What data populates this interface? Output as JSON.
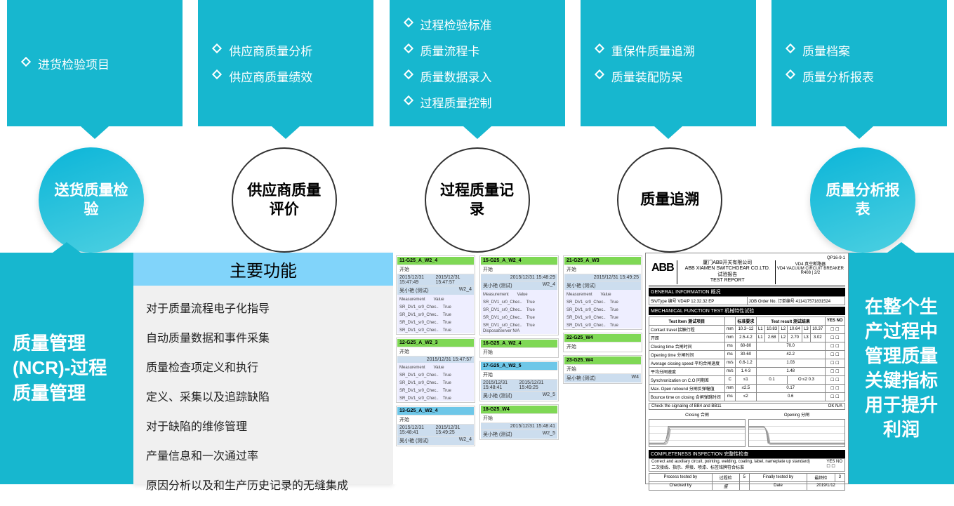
{
  "colors": {
    "teal": "#17b7cf",
    "gradStart": "#0bb5d8",
    "gradEnd": "#4dd0e1",
    "headerBlue": "#81d4fa",
    "green": "#7fd855",
    "lightBlue": "#6ec7e8"
  },
  "top_boxes": [
    {
      "items": [
        "进货检验项目"
      ]
    },
    {
      "items": [
        "供应商质量分析",
        "供应商质量绩效"
      ]
    },
    {
      "items": [
        "过程检验标准",
        "质量流程卡",
        "质量数据录入",
        "过程质量控制"
      ]
    },
    {
      "items": [
        "重保件质量追溯",
        "质量装配防呆"
      ]
    },
    {
      "items": [
        "质量档案",
        "质量分析报表"
      ]
    }
  ],
  "circles": [
    {
      "label": "送货质量检验",
      "filled": true
    },
    {
      "label": "供应商质量评价",
      "filled": false
    },
    {
      "label": "过程质量记录",
      "filled": false
    },
    {
      "label": "质量追溯",
      "filled": false
    },
    {
      "label": "质量分析报表",
      "filled": true
    }
  ],
  "side_left": "质量管理(NCR)-过程质量管理",
  "side_right": "在整个生产过程中管理质量关键指标用于提升利润",
  "feature": {
    "header": "主要功能",
    "items": [
      "对于质量流程电子化指导",
      "自动质量数据和事件采集",
      "质量检查项定义和执行",
      "定义、采集以及追踪缺陷",
      "对于缺陷的维修管理",
      "产量信息和一次通过率",
      "原因分析以及和生产历史记录的无缝集成"
    ]
  },
  "mini_cards": [
    {
      "col": 0,
      "id": "11-G25_A_W2_4",
      "headColor": "green",
      "time1": "2015/12/31 15:47:49",
      "time2": "2015/12/31 15:47:57",
      "op": "吴小艳 (测试)",
      "val": "W2_4",
      "checks": true
    },
    {
      "col": 0,
      "id": "12-G25_A_W2_3",
      "headColor": "green",
      "time1": "",
      "time2": "2015/12/31 15:47:57",
      "op": "",
      "val": "W2_3",
      "checks": true
    },
    {
      "col": 0,
      "id": "13-G25_A_W2_4",
      "headColor": "blue",
      "time1": "2015/12/31 15:48:41",
      "time2": "2015/12/31 15:49:25",
      "op": "吴小艳 (测试)",
      "val": "W2_4"
    },
    {
      "col": 1,
      "id": "15-G25_A_W2_4",
      "headColor": "green",
      "time1": "",
      "time2": "2015/12/31 15:48:29",
      "op": "吴小艳 (测试)",
      "val": "W2_4",
      "checks": true,
      "sub": "DisposalServer  N/A"
    },
    {
      "col": 1,
      "id": "16-G25_A_W2_4",
      "headColor": "green"
    },
    {
      "col": 1,
      "id": "17-G25_A_W2_5",
      "headColor": "blue",
      "time1": "2015/12/31 15:48:41",
      "time2": "2015/12/31 15:49:25",
      "op": "吴小艳 (测试)",
      "val": "W2_5"
    },
    {
      "col": 1,
      "id": "18-G25_W4",
      "headColor": "green",
      "time1": "",
      "time2": "2015/12/31 15:48:41",
      "op": "吴小艳 (测试)",
      "val": "W2_5"
    },
    {
      "col": 2,
      "id": "21-G25_A_W3",
      "headColor": "green",
      "time1": "",
      "time2": "2015/12/31 15:49:25",
      "op": "吴小艳 (测试)",
      "val": "",
      "checks": true
    },
    {
      "col": 2,
      "id": "22-G25_W4",
      "headColor": "green"
    },
    {
      "col": 2,
      "id": "23-G25_W4",
      "headColor": "green",
      "op": "吴小艳 (测试)",
      "val": "W4"
    }
  ],
  "test_report": {
    "logo": "ABB",
    "company_cn": "厦门ABB开关有限公司",
    "company_en": "ABB XIAMEN SWITCHGEAR CO.LTD.",
    "subtitle_cn": "试验报告",
    "subtitle_en": "TEST REPORT",
    "product_cn": "VD4 真空断路器",
    "product_en": "VD4 VACUUM CIRCUIT BREAKER",
    "doc": "R408",
    "page": "2/2",
    "section1": "GENERAL INFORMATION 概况",
    "typeLabel": "SN/Type 编号",
    "typeVal": "VD4/P 12.32.32 EP",
    "orderLabel": "JOB Order No. 订单编号",
    "orderVal": "411417571831524",
    "section2": "MECHANICAL FUNCTION TEST 机械特性试验",
    "col_test": "Test Item 测试项目",
    "col_req": "标准要求",
    "col_result": "Test result 测试结果",
    "col_yn": "YES  NO",
    "mech_rows": [
      {
        "item": "Contact travel 接触行程",
        "req": "mm",
        "r1": "10.3~12",
        "l1": "L1",
        "v1": "10.83",
        "l2": "L2",
        "v2": "10.64",
        "l3": "L3",
        "v3": "10.37"
      },
      {
        "item": "开距",
        "req": "mm",
        "r1": "2.5-4.2",
        "l1": "L1",
        "v1": "2.68",
        "l2": "L2",
        "v2": "2.70",
        "l3": "L3",
        "v3": "3.02"
      },
      {
        "item": "Closing time 合闸时间",
        "req": "ms",
        "r1": "60-80",
        "v1": "70.0"
      },
      {
        "item": "Opening time 分闸时间",
        "req": "ms",
        "r1": "30-60",
        "v1": "42.2"
      },
      {
        "item": "Average closing speed 平均合闸速度",
        "req": "m/s",
        "r1": "0.6-1.2",
        "v1": "1.03"
      },
      {
        "item": "平均分闸速度",
        "req": "m/s",
        "r1": "1.4-3",
        "v1": "1.48"
      },
      {
        "item": "Synchronization on C.O 同期差",
        "req": "C",
        "r1": "≤1",
        "v1": "0.1",
        "extra": "O  ≤2  0.3"
      },
      {
        "item": "Max. Open rebound 分闸反弹幅值",
        "req": "mm",
        "r1": "≤2.5",
        "v1": "0.17"
      },
      {
        "item": "Bounce time on closing 合闸弹跳时间",
        "req": "ms",
        "r1": "≤2",
        "v1": "0.6"
      }
    ],
    "check_line": "Check the signaling of BB4 and BB11",
    "check_vals": "OK  N/A",
    "chart_left": "Closing  合闸",
    "chart_right": "Opening  分闸",
    "section3": "COMPLETENESS INSPECTION 完整性检查",
    "insp_line1": "Correct and auxiliary circuit, pointing, welding, coating, label, nameplate up standard)",
    "insp_line2": "二次接线、指示、焊接、喷漆、标签铭牌符合标准",
    "footer_tested": "Process tested by",
    "footer_final": "Finally tested by",
    "footer_person": "过程检",
    "footer_sig": "盛",
    "footer_check": "Checked by",
    "footer_date": "Date",
    "footer_dateval": "2019/1/12",
    "footer_val": "5",
    "footer_val2": "最终检",
    "footer_val3": "3"
  }
}
